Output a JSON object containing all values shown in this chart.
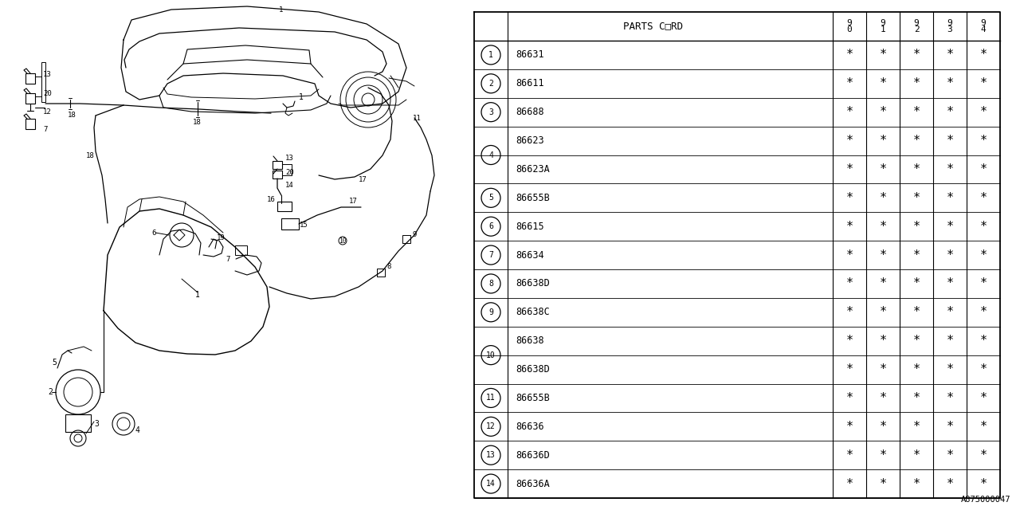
{
  "diagram_id": "A875000047",
  "bg_color": "#ffffff",
  "rows": [
    {
      "num": "1",
      "part": "86631",
      "vals": [
        "*",
        "*",
        "*",
        "*",
        "*"
      ],
      "span": false
    },
    {
      "num": "2",
      "part": "86611",
      "vals": [
        "*",
        "*",
        "*",
        "*",
        "*"
      ],
      "span": false
    },
    {
      "num": "3",
      "part": "86688",
      "vals": [
        "*",
        "*",
        "*",
        "*",
        "*"
      ],
      "span": false
    },
    {
      "num": "4",
      "part": "86623",
      "vals": [
        "*",
        "*",
        "*",
        "*",
        "*"
      ],
      "span": true,
      "span_row": 0
    },
    {
      "num": "4",
      "part": "86623A",
      "vals": [
        "*",
        "*",
        "*",
        "*",
        "*"
      ],
      "span": true,
      "span_row": 1
    },
    {
      "num": "5",
      "part": "86655B",
      "vals": [
        "*",
        "*",
        "*",
        "*",
        "*"
      ],
      "span": false
    },
    {
      "num": "6",
      "part": "86615",
      "vals": [
        "*",
        "*",
        "*",
        "*",
        "*"
      ],
      "span": false
    },
    {
      "num": "7",
      "part": "86634",
      "vals": [
        "*",
        "*",
        "*",
        "*",
        "*"
      ],
      "span": false
    },
    {
      "num": "8",
      "part": "86638D",
      "vals": [
        "*",
        "*",
        "*",
        "*",
        "*"
      ],
      "span": false
    },
    {
      "num": "9",
      "part": "86638C",
      "vals": [
        "*",
        "*",
        "*",
        "*",
        "*"
      ],
      "span": false
    },
    {
      "num": "10",
      "part": "86638",
      "vals": [
        "*",
        "*",
        "*",
        "*",
        "*"
      ],
      "span": true,
      "span_row": 0
    },
    {
      "num": "10",
      "part": "86638D",
      "vals": [
        "*",
        "*",
        "*",
        "*",
        "*"
      ],
      "span": true,
      "span_row": 1
    },
    {
      "num": "11",
      "part": "86655B",
      "vals": [
        "*",
        "*",
        "*",
        "*",
        "*"
      ],
      "span": false
    },
    {
      "num": "12",
      "part": "86636",
      "vals": [
        "*",
        "*",
        "*",
        "*",
        "*"
      ],
      "span": false
    },
    {
      "num": "13",
      "part": "86636D",
      "vals": [
        "*",
        "*",
        "*",
        "*",
        "*"
      ],
      "span": false
    },
    {
      "num": "14",
      "part": "86636A",
      "vals": [
        "*",
        "*",
        "*",
        "*",
        "*"
      ],
      "span": false
    }
  ],
  "header_parts_label": "PARTS C□RD",
  "year_cols": [
    "9\n0",
    "9\n1",
    "9\n2",
    "9\n3",
    "9\n4"
  ]
}
